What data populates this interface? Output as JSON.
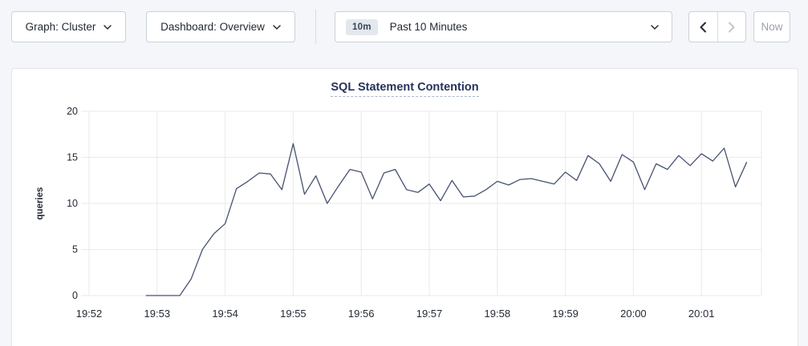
{
  "toolbar": {
    "graph_dropdown_label": "Graph: Cluster",
    "dashboard_dropdown_label": "Dashboard: Overview",
    "time_picker": {
      "preset_badge": "10m",
      "selected_label": "Past 10 Minutes"
    },
    "now_button_label": "Now"
  },
  "colors": {
    "line": "#475270",
    "gridline": "#e9eaec",
    "tick_text": "#242a35",
    "title": "#26335c"
  },
  "chart_data": {
    "type": "line",
    "title": "SQL Statement Contention",
    "xlabel": "",
    "ylabel": "queries",
    "ylim": [
      0,
      20
    ],
    "y_ticks": [
      0,
      5,
      10,
      15,
      20
    ],
    "x_ticks": [
      "19:52",
      "19:53",
      "19:54",
      "19:55",
      "19:56",
      "19:57",
      "19:58",
      "19:59",
      "20:00",
      "20:01"
    ],
    "grid": true,
    "legend": "none",
    "series": [
      {
        "name": "queries",
        "x": [
          "19:52:50",
          "19:53:00",
          "19:53:10",
          "19:53:20",
          "19:53:30",
          "19:53:40",
          "19:53:50",
          "19:54:00",
          "19:54:10",
          "19:54:20",
          "19:54:30",
          "19:54:40",
          "19:54:50",
          "19:55:00",
          "19:55:10",
          "19:55:20",
          "19:55:30",
          "19:55:40",
          "19:55:50",
          "19:56:00",
          "19:56:10",
          "19:56:20",
          "19:56:30",
          "19:56:40",
          "19:56:50",
          "19:57:00",
          "19:57:10",
          "19:57:20",
          "19:57:30",
          "19:57:40",
          "19:57:50",
          "19:58:00",
          "19:58:10",
          "19:58:20",
          "19:58:30",
          "19:58:40",
          "19:58:50",
          "19:59:00",
          "19:59:10",
          "19:59:20",
          "19:59:30",
          "19:59:40",
          "19:59:50",
          "20:00:00",
          "20:00:10",
          "20:00:20",
          "20:00:30",
          "20:00:40",
          "20:00:50",
          "20:01:00",
          "20:01:10",
          "20:01:20",
          "20:01:30",
          "20:01:40"
        ],
        "values": [
          0,
          0,
          0,
          0,
          1.8,
          5.0,
          6.7,
          7.8,
          11.6,
          12.4,
          13.3,
          13.2,
          11.5,
          16.5,
          11.0,
          13.0,
          10.0,
          11.9,
          13.7,
          13.4,
          10.5,
          13.3,
          13.7,
          11.5,
          11.2,
          12.1,
          10.3,
          12.5,
          10.7,
          10.8,
          11.5,
          12.4,
          12.0,
          12.6,
          12.7,
          12.4,
          12.1,
          13.4,
          12.5,
          15.2,
          14.3,
          12.4,
          15.3,
          14.5,
          11.5,
          14.3,
          13.7,
          15.2,
          14.1,
          15.4,
          14.6,
          16.0,
          11.8,
          14.5
        ]
      }
    ]
  }
}
